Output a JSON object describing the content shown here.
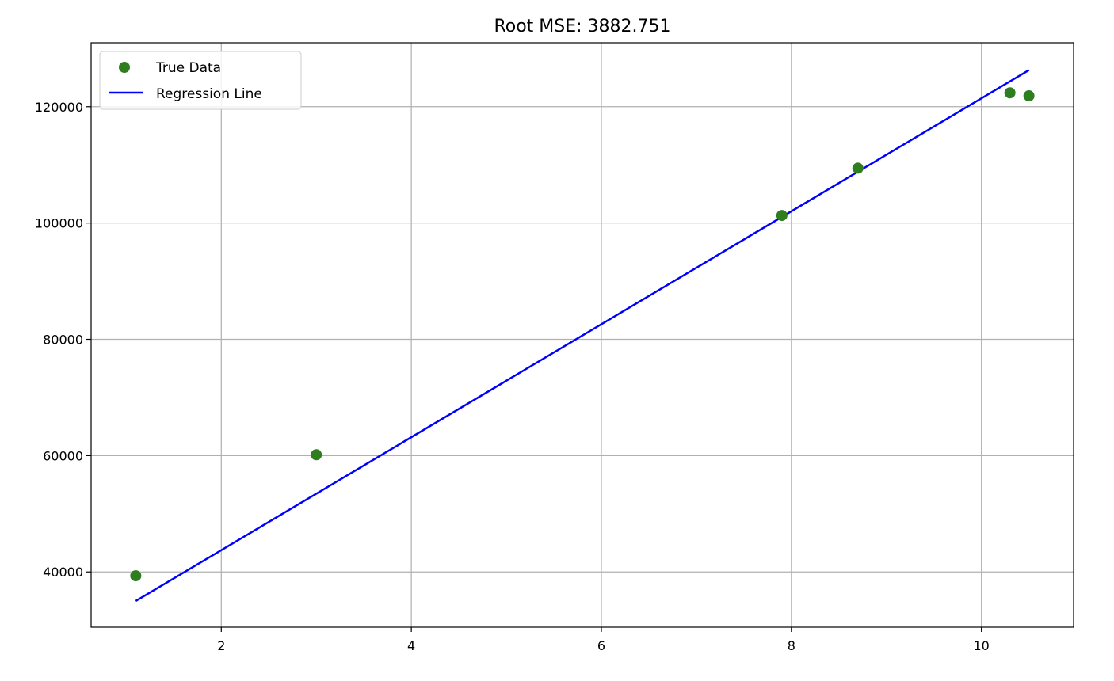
{
  "chart_data": {
    "type": "scatter",
    "title": "Root MSE: 3882.751",
    "xlabel": "",
    "ylabel": "",
    "xlim": [
      0.63,
      10.97
    ],
    "ylim": [
      30500,
      131000
    ],
    "x_ticks": [
      2,
      4,
      6,
      8,
      10
    ],
    "y_ticks": [
      40000,
      60000,
      80000,
      100000,
      120000
    ],
    "grid": true,
    "legend_position": "top-left",
    "series": [
      {
        "name": "True Data",
        "kind": "scatter",
        "color": "#2e7d1f",
        "points": [
          {
            "x": 1.1,
            "y": 39343
          },
          {
            "x": 3.0,
            "y": 60150
          },
          {
            "x": 7.9,
            "y": 101302
          },
          {
            "x": 8.7,
            "y": 109431
          },
          {
            "x": 10.3,
            "y": 122391
          },
          {
            "x": 10.5,
            "y": 121872
          }
        ]
      },
      {
        "name": "Regression Line",
        "kind": "line",
        "color": "#0000ff",
        "points": [
          {
            "x": 1.1,
            "y": 35000
          },
          {
            "x": 10.5,
            "y": 126300
          }
        ]
      }
    ]
  }
}
